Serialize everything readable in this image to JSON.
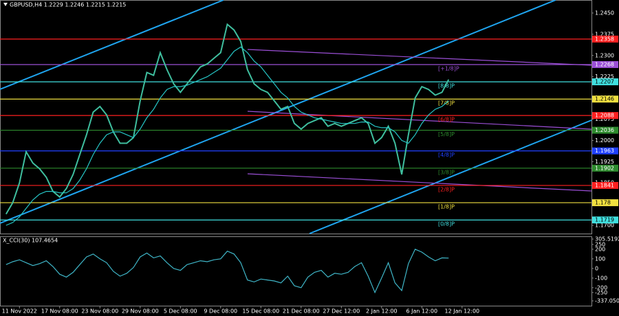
{
  "chart_data": [
    {
      "type": "line",
      "title": "GBPUSD,H4  1.2229 1.2246 1.2215 1.2215",
      "xlim": [
        -0.9,
        87.3
      ],
      "xticks": [
        {
          "value": 2,
          "label": "11 Nov 2022"
        },
        {
          "value": 8,
          "label": "17 Nov 08:00"
        },
        {
          "value": 14,
          "label": "23 Nov 08:00"
        },
        {
          "value": 20,
          "label": "29 Nov 08:00"
        },
        {
          "value": 26,
          "label": "5 Dec 08:00"
        },
        {
          "value": 32,
          "label": "9 Dec 08:00"
        },
        {
          "value": 38,
          "label": "15 Dec 08:00"
        },
        {
          "value": 44,
          "label": "21 Dec 08:00"
        },
        {
          "value": 50,
          "label": "27 Dec 12:00"
        },
        {
          "value": 56,
          "label": "2 Jan 12:00"
        },
        {
          "value": 62,
          "label": "6 Jan 12:00"
        },
        {
          "value": 68,
          "label": "12 Jan 12:00"
        }
      ],
      "ylim": [
        1.1671,
        1.2496
      ],
      "yticks": [
        {
          "value": 1.245,
          "label": "1.2450"
        },
        1.2375,
        {
          "value": 1.23,
          "label": "1.2300"
        },
        1.2225,
        {
          "value": 1.215,
          "label": "1.2150"
        },
        1.2075,
        {
          "value": 1.2,
          "label": "1.2000"
        },
        1.1925,
        {
          "value": 1.185,
          "label": "1.1850"
        },
        1.1775,
        {
          "value": 1.17,
          "label": "1.1700"
        }
      ],
      "series": [
        {
          "color": "#3fbf9f",
          "values": [
            1.174,
            1.178,
            1.185,
            1.196,
            1.192,
            1.19,
            1.187,
            1.182,
            1.18,
            1.183,
            1.188,
            1.195,
            1.202,
            1.21,
            1.212,
            1.209,
            1.203,
            1.199,
            1.199,
            1.201,
            1.214,
            1.224,
            1.223,
            1.231,
            1.225,
            1.22,
            1.217,
            1.22,
            1.223,
            1.226,
            1.227,
            1.229,
            1.231,
            1.241,
            1.239,
            1.235,
            1.225,
            1.22,
            1.218,
            1.217,
            1.214,
            1.211,
            1.212,
            1.206,
            1.204,
            1.206,
            1.207,
            1.208,
            1.205,
            1.206,
            1.205,
            1.206,
            1.207,
            1.208,
            1.206,
            1.199,
            1.201,
            1.205,
            1.199,
            1.188,
            1.202,
            1.215,
            1.219,
            1.218,
            1.216,
            1.217,
            1.2215
          ]
        },
        {
          "color": "#26c6c6",
          "values": [
            1.17,
            1.171,
            1.173,
            1.176,
            1.179,
            1.181,
            1.182,
            1.182,
            1.1815,
            1.1815,
            1.183,
            1.186,
            1.19,
            1.195,
            1.199,
            1.202,
            1.203,
            1.203,
            1.202,
            1.201,
            1.204,
            1.208,
            1.211,
            1.215,
            1.218,
            1.219,
            1.219,
            1.2195,
            1.2205,
            1.2215,
            1.2225,
            1.224,
            1.2255,
            1.2285,
            1.2315,
            1.233,
            1.231,
            1.228,
            1.226,
            1.223,
            1.22,
            1.217,
            1.215,
            1.212,
            1.21,
            1.209,
            1.208,
            1.2075,
            1.207,
            1.2065,
            1.206,
            1.206,
            1.206,
            1.2065,
            1.2065,
            1.205,
            1.2045,
            1.2045,
            1.203,
            1.2,
            1.199,
            1.202,
            1.206,
            1.209,
            1.211,
            1.212,
            1.214
          ]
        }
      ],
      "levels": [
        {
          "value": 1.2358,
          "color": "#ff2020"
        },
        {
          "value": 1.2268,
          "color": "#9b4fd6",
          "murray": "[+1/8]P"
        },
        {
          "value": 1.2207,
          "color": "#40e0e0",
          "murray": "[8/8]P"
        },
        {
          "value": 1.2146,
          "color": "#f0e040",
          "murray": "[7/8]P"
        },
        {
          "value": 1.2088,
          "color": "#ff2020",
          "murray": "[6/8]P"
        },
        {
          "value": 1.2036,
          "color": "#2e8b2e",
          "murray": "[5/8]P"
        },
        {
          "value": 1.1963,
          "color": "#2040ff",
          "murray": "[4/8]P"
        },
        {
          "value": 1.1902,
          "color": "#2e8b2e",
          "murray": "[3/8]P"
        },
        {
          "value": 1.1841,
          "color": "#ff2020",
          "murray": "[2/8]P"
        },
        {
          "value": 1.178,
          "color": "#f0e040",
          "murray": "[1/8]P"
        },
        {
          "value": 1.1719,
          "color": "#40e0e0",
          "murray": "[0/8]P"
        }
      ]
    },
    {
      "type": "line",
      "title": "X_CCI(30) 107.4654",
      "ylim": [
        -337.0509,
        305.5192
      ],
      "yticks": [
        305.5192,
        250,
        200,
        100,
        0,
        -100,
        -200,
        -250,
        -337.0509
      ],
      "series": [
        {
          "color": "#3fb6c8",
          "values": [
            40,
            70,
            90,
            60,
            30,
            50,
            80,
            20,
            -60,
            -90,
            -40,
            40,
            120,
            150,
            100,
            60,
            -30,
            -80,
            -50,
            10,
            120,
            160,
            110,
            130,
            60,
            0,
            -20,
            40,
            60,
            80,
            70,
            90,
            100,
            180,
            150,
            60,
            -120,
            -140,
            -110,
            -120,
            -130,
            -150,
            -80,
            -180,
            -200,
            -90,
            -40,
            -20,
            -90,
            -50,
            -60,
            -40,
            20,
            60,
            -80,
            -250,
            -100,
            60,
            -150,
            -230,
            50,
            200,
            170,
            120,
            80,
            110,
            107.4654
          ]
        }
      ]
    }
  ]
}
